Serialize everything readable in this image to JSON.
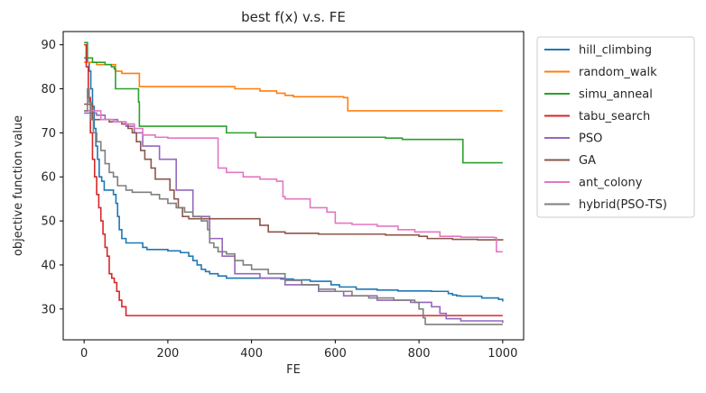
{
  "chart_data": {
    "type": "line",
    "title": "best f(x) v.s. FE",
    "xlabel": "FE",
    "ylabel": "objective function value",
    "xlim": [
      -50,
      1050
    ],
    "ylim": [
      23,
      93
    ],
    "xticks": [
      0,
      200,
      400,
      600,
      800,
      1000
    ],
    "yticks": [
      30,
      40,
      50,
      60,
      70,
      80,
      90
    ],
    "grid": false,
    "legend_position": "outside-right",
    "series": [
      {
        "name": "hill_climbing",
        "color": "#1f77b4",
        "points": [
          [
            0,
            87
          ],
          [
            8,
            86
          ],
          [
            12,
            84
          ],
          [
            16,
            80
          ],
          [
            20,
            76
          ],
          [
            24,
            71
          ],
          [
            28,
            67
          ],
          [
            32,
            64
          ],
          [
            36,
            60
          ],
          [
            42,
            59
          ],
          [
            48,
            57
          ],
          [
            58,
            57
          ],
          [
            70,
            56
          ],
          [
            76,
            54
          ],
          [
            80,
            51
          ],
          [
            84,
            48
          ],
          [
            90,
            46
          ],
          [
            100,
            45
          ],
          [
            120,
            45
          ],
          [
            140,
            44
          ],
          [
            150,
            43.5
          ],
          [
            170,
            43.5
          ],
          [
            200,
            43.2
          ],
          [
            230,
            42.8
          ],
          [
            250,
            42
          ],
          [
            260,
            41
          ],
          [
            270,
            40
          ],
          [
            280,
            39
          ],
          [
            290,
            38.5
          ],
          [
            300,
            38
          ],
          [
            320,
            37.5
          ],
          [
            340,
            37
          ],
          [
            440,
            37
          ],
          [
            470,
            36.8
          ],
          [
            500,
            36.6
          ],
          [
            540,
            36.3
          ],
          [
            590,
            35.5
          ],
          [
            610,
            35
          ],
          [
            650,
            34.5
          ],
          [
            700,
            34.3
          ],
          [
            750,
            34.1
          ],
          [
            830,
            34
          ],
          [
            870,
            33.5
          ],
          [
            880,
            33.2
          ],
          [
            890,
            33
          ],
          [
            900,
            32.9
          ],
          [
            950,
            32.5
          ],
          [
            990,
            32.2
          ],
          [
            1000,
            31.7
          ]
        ]
      },
      {
        "name": "random_walk",
        "color": "#ff7f0e",
        "points": [
          [
            0,
            86
          ],
          [
            20,
            86
          ],
          [
            30,
            85.5
          ],
          [
            70,
            85.5
          ],
          [
            75,
            84
          ],
          [
            90,
            83.5
          ],
          [
            130,
            83.5
          ],
          [
            132,
            80.5
          ],
          [
            355,
            80.5
          ],
          [
            360,
            80
          ],
          [
            400,
            80
          ],
          [
            420,
            79.5
          ],
          [
            460,
            79
          ],
          [
            480,
            78.5
          ],
          [
            500,
            78.2
          ],
          [
            620,
            78
          ],
          [
            630,
            75
          ],
          [
            1000,
            75
          ]
        ]
      },
      {
        "name": "simu_anneal",
        "color": "#2ca02c",
        "points": [
          [
            0,
            90.5
          ],
          [
            8,
            87
          ],
          [
            20,
            86
          ],
          [
            50,
            85.5
          ],
          [
            65,
            85
          ],
          [
            72,
            84.5
          ],
          [
            75,
            80
          ],
          [
            125,
            80
          ],
          [
            130,
            77
          ],
          [
            132,
            71.5
          ],
          [
            330,
            71.5
          ],
          [
            340,
            70
          ],
          [
            400,
            70
          ],
          [
            410,
            69
          ],
          [
            590,
            69
          ],
          [
            600,
            69
          ],
          [
            720,
            68.8
          ],
          [
            760,
            68.5
          ],
          [
            900,
            68.5
          ],
          [
            905,
            63.2
          ],
          [
            1000,
            63.2
          ]
        ]
      },
      {
        "name": "tabu_search",
        "color": "#d62728",
        "points": [
          [
            0,
            90
          ],
          [
            5,
            85
          ],
          [
            10,
            78
          ],
          [
            15,
            70
          ],
          [
            20,
            64
          ],
          [
            25,
            60
          ],
          [
            30,
            56
          ],
          [
            35,
            53
          ],
          [
            40,
            50
          ],
          [
            45,
            47
          ],
          [
            50,
            44
          ],
          [
            55,
            42
          ],
          [
            60,
            38
          ],
          [
            66,
            37
          ],
          [
            72,
            36
          ],
          [
            78,
            34
          ],
          [
            84,
            32
          ],
          [
            90,
            30.5
          ],
          [
            100,
            28.5
          ],
          [
            1000,
            28.5
          ]
        ]
      },
      {
        "name": "PSO",
        "color": "#9467bd",
        "points": [
          [
            0,
            74.5
          ],
          [
            30,
            74
          ],
          [
            50,
            73
          ],
          [
            80,
            72.5
          ],
          [
            100,
            71.5
          ],
          [
            120,
            70
          ],
          [
            140,
            67
          ],
          [
            180,
            64
          ],
          [
            220,
            57
          ],
          [
            260,
            51
          ],
          [
            300,
            46
          ],
          [
            330,
            42
          ],
          [
            360,
            38
          ],
          [
            420,
            37
          ],
          [
            480,
            35.5
          ],
          [
            560,
            34
          ],
          [
            620,
            33
          ],
          [
            700,
            32
          ],
          [
            780,
            31.5
          ],
          [
            830,
            30.5
          ],
          [
            850,
            29
          ],
          [
            865,
            27.8
          ],
          [
            900,
            27.3
          ],
          [
            1000,
            26.8
          ]
        ]
      },
      {
        "name": "GA",
        "color": "#8c564b",
        "points": [
          [
            0,
            76.5
          ],
          [
            10,
            76.5
          ],
          [
            20,
            73
          ],
          [
            40,
            73
          ],
          [
            60,
            72.5
          ],
          [
            90,
            72
          ],
          [
            105,
            71
          ],
          [
            115,
            70
          ],
          [
            125,
            68
          ],
          [
            135,
            66
          ],
          [
            145,
            64
          ],
          [
            160,
            62
          ],
          [
            170,
            59.5
          ],
          [
            200,
            59.5
          ],
          [
            205,
            57
          ],
          [
            215,
            55
          ],
          [
            225,
            53
          ],
          [
            235,
            51
          ],
          [
            250,
            50.5
          ],
          [
            390,
            50.5
          ],
          [
            420,
            49
          ],
          [
            440,
            47.5
          ],
          [
            480,
            47.2
          ],
          [
            560,
            47
          ],
          [
            640,
            47
          ],
          [
            720,
            46.8
          ],
          [
            800,
            46.5
          ],
          [
            820,
            46
          ],
          [
            880,
            45.8
          ],
          [
            940,
            45.7
          ],
          [
            1000,
            45.6
          ]
        ]
      },
      {
        "name": "ant_colony",
        "color": "#e377c2",
        "points": [
          [
            0,
            75
          ],
          [
            30,
            75
          ],
          [
            40,
            73
          ],
          [
            70,
            72.5
          ],
          [
            100,
            72
          ],
          [
            120,
            71
          ],
          [
            140,
            69.5
          ],
          [
            170,
            69
          ],
          [
            200,
            68.8
          ],
          [
            250,
            68.8
          ],
          [
            310,
            68.8
          ],
          [
            320,
            62
          ],
          [
            340,
            61
          ],
          [
            380,
            60
          ],
          [
            420,
            59.5
          ],
          [
            460,
            59
          ],
          [
            475,
            55.5
          ],
          [
            480,
            55
          ],
          [
            540,
            53
          ],
          [
            580,
            52
          ],
          [
            600,
            49.5
          ],
          [
            640,
            49.2
          ],
          [
            700,
            48.8
          ],
          [
            750,
            48
          ],
          [
            790,
            47.5
          ],
          [
            850,
            46.5
          ],
          [
            900,
            46.3
          ],
          [
            980,
            46.2
          ],
          [
            985,
            43
          ],
          [
            1000,
            43
          ]
        ]
      },
      {
        "name": "hybrid(PSO-TS)",
        "color": "#7f7f7f",
        "points": [
          [
            0,
            75
          ],
          [
            8,
            80
          ],
          [
            12,
            77
          ],
          [
            16,
            73
          ],
          [
            22,
            70
          ],
          [
            30,
            68
          ],
          [
            40,
            66
          ],
          [
            50,
            63
          ],
          [
            60,
            61
          ],
          [
            70,
            60
          ],
          [
            80,
            58
          ],
          [
            90,
            58
          ],
          [
            100,
            57
          ],
          [
            115,
            56.5
          ],
          [
            140,
            56.5
          ],
          [
            160,
            56
          ],
          [
            180,
            55
          ],
          [
            200,
            54
          ],
          [
            220,
            53
          ],
          [
            240,
            52
          ],
          [
            260,
            51
          ],
          [
            280,
            50
          ],
          [
            295,
            48
          ],
          [
            300,
            45
          ],
          [
            310,
            44
          ],
          [
            320,
            43
          ],
          [
            340,
            42.5
          ],
          [
            360,
            41
          ],
          [
            380,
            40
          ],
          [
            400,
            39
          ],
          [
            440,
            38
          ],
          [
            480,
            36.5
          ],
          [
            520,
            35.5
          ],
          [
            560,
            34.5
          ],
          [
            600,
            34
          ],
          [
            640,
            33
          ],
          [
            680,
            32.5
          ],
          [
            740,
            32
          ],
          [
            790,
            31.5
          ],
          [
            800,
            30
          ],
          [
            810,
            28
          ],
          [
            815,
            26.5
          ],
          [
            1000,
            26.5
          ]
        ]
      }
    ]
  }
}
